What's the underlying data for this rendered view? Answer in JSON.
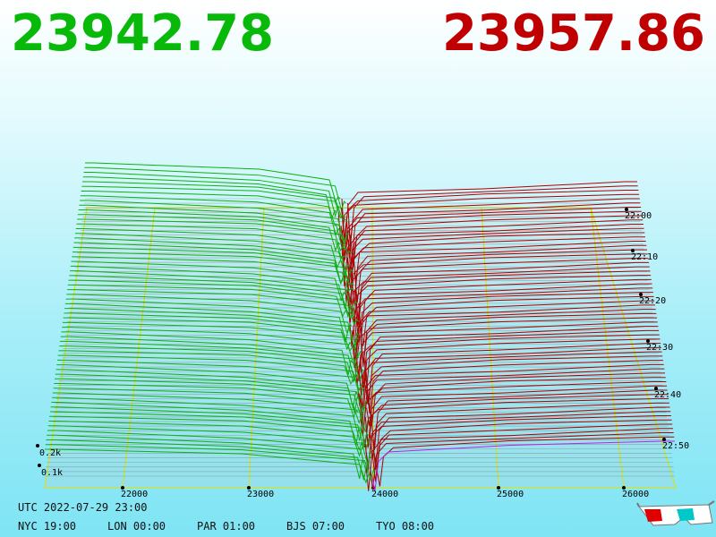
{
  "header": {
    "bid": "23942.78",
    "ask": "23957.86"
  },
  "price_axis": [
    "22000",
    "23000",
    "24000",
    "25000",
    "26000"
  ],
  "depth_axis": [
    "0.2k",
    "0.1k"
  ],
  "time_axis": [
    "22:00",
    "22:10",
    "22:20",
    "22:30",
    "22:40",
    "22:50"
  ],
  "footer": {
    "utc": "UTC 2022-07-29 23:00",
    "clocks": [
      "NYC 19:00",
      "LON 00:00",
      "PAR 01:00",
      "BJS 07:00",
      "TYO 08:00"
    ]
  }
}
